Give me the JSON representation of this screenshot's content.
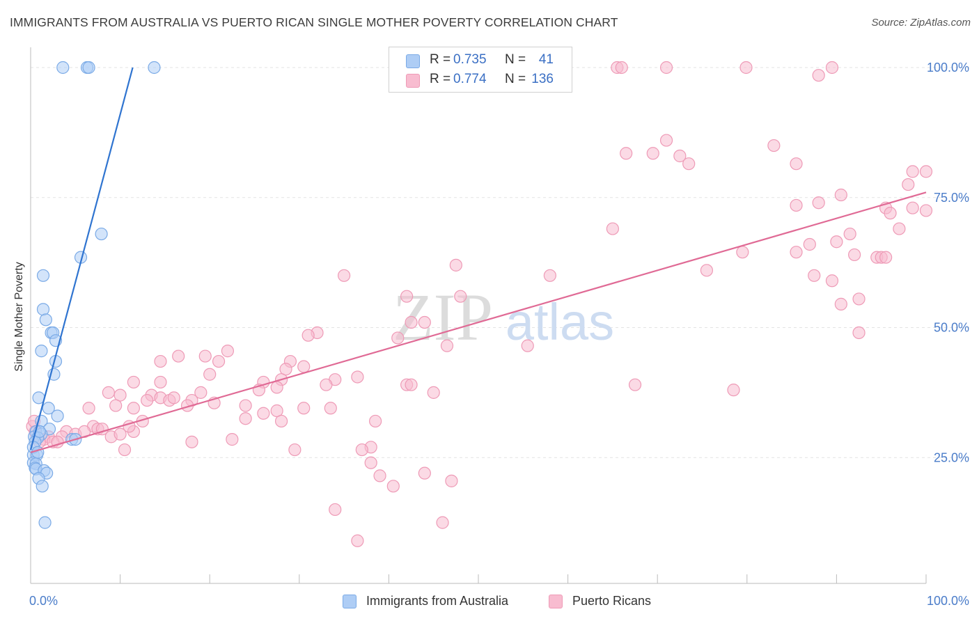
{
  "title": "IMMIGRANTS FROM AUSTRALIA VS PUERTO RICAN SINGLE MOTHER POVERTY CORRELATION CHART",
  "source": "Source: ZipAtlas.com",
  "watermark": {
    "zip": "ZIP",
    "atlas": "atlas"
  },
  "colors": {
    "blue_fill": "#aecdf5",
    "blue_stroke": "#7aaae6",
    "blue_line": "#2f74d0",
    "pink_fill": "#f8bcd0",
    "pink_stroke": "#ee9ab6",
    "pink_line": "#e06a95",
    "axis_text": "#4a7cc9",
    "grid": "#e3e3e3"
  },
  "legend": {
    "rows": [
      {
        "r_label": "R =",
        "r_value": "0.735",
        "n_label": "N =",
        "n_value": "41"
      },
      {
        "r_label": "R =",
        "r_value": "0.774",
        "n_label": "N =",
        "n_value": "136"
      }
    ]
  },
  "bottom_legend": [
    "Immigrants from Australia",
    "Puerto Ricans"
  ],
  "chart_data": {
    "type": "scatter",
    "title": "IMMIGRANTS FROM AUSTRALIA VS PUERTO RICAN SINGLE MOTHER POVERTY CORRELATION CHART",
    "xlabel": "",
    "ylabel": "Single Mother Poverty",
    "xlim": [
      0,
      100
    ],
    "ylim": [
      0,
      102
    ],
    "x_tick_labels": [
      {
        "value": 0,
        "label": "0.0%"
      },
      {
        "value": 100,
        "label": "100.0%"
      }
    ],
    "y_tick_labels": [
      {
        "value": 25,
        "label": "25.0%"
      },
      {
        "value": 50,
        "label": "50.0%"
      },
      {
        "value": 75,
        "label": "75.0%"
      },
      {
        "value": 100,
        "label": "100.0%"
      }
    ],
    "series": [
      {
        "name": "Immigrants from Australia",
        "R": 0.735,
        "N": 41,
        "trend": {
          "x0": 0.0,
          "y0": 26.5,
          "x1": 11.4,
          "y1": 100.0
        },
        "points": [
          [
            3.6,
            100
          ],
          [
            6.3,
            100
          ],
          [
            6.5,
            100
          ],
          [
            13.8,
            100
          ],
          [
            7.9,
            68
          ],
          [
            5.6,
            63.5
          ],
          [
            1.4,
            60
          ],
          [
            1.4,
            53.5
          ],
          [
            1.7,
            51.5
          ],
          [
            2.3,
            49
          ],
          [
            2.5,
            49
          ],
          [
            1.2,
            45.5
          ],
          [
            2.8,
            47.5
          ],
          [
            2.8,
            43.5
          ],
          [
            2.6,
            41
          ],
          [
            0.9,
            36.5
          ],
          [
            2.0,
            34.5
          ],
          [
            3.0,
            33
          ],
          [
            1.2,
            32
          ],
          [
            2.1,
            30.5
          ],
          [
            0.6,
            30
          ],
          [
            1.2,
            29.5
          ],
          [
            0.4,
            29
          ],
          [
            0.8,
            28.8
          ],
          [
            4.6,
            28.5
          ],
          [
            5.0,
            28.5
          ],
          [
            0.5,
            28
          ],
          [
            0.3,
            25.5
          ],
          [
            0.7,
            25.5
          ],
          [
            0.3,
            24
          ],
          [
            0.6,
            23.8
          ],
          [
            0.5,
            23
          ],
          [
            0.6,
            22.8
          ],
          [
            1.5,
            22.5
          ],
          [
            1.8,
            22
          ],
          [
            0.9,
            21
          ],
          [
            1.3,
            19.5
          ],
          [
            1.6,
            12.5
          ],
          [
            0.3,
            27
          ],
          [
            1.0,
            30
          ],
          [
            0.8,
            26
          ]
        ]
      },
      {
        "name": "Puerto Ricans",
        "R": 0.774,
        "N": 136,
        "trend": {
          "x0": 0.0,
          "y0": 26.0,
          "x1": 100.0,
          "y1": 76.0
        },
        "points": [
          [
            65.5,
            100
          ],
          [
            66.0,
            100
          ],
          [
            71.0,
            100
          ],
          [
            79.9,
            100
          ],
          [
            89.5,
            100
          ],
          [
            88.0,
            98.5
          ],
          [
            71.0,
            86
          ],
          [
            83.0,
            85
          ],
          [
            66.5,
            83.5
          ],
          [
            69.5,
            83.5
          ],
          [
            72.5,
            83
          ],
          [
            73.5,
            81.5
          ],
          [
            85.5,
            81.5
          ],
          [
            98.5,
            80
          ],
          [
            100.0,
            80
          ],
          [
            98.0,
            77.5
          ],
          [
            90.5,
            75.5
          ],
          [
            88.0,
            74
          ],
          [
            85.5,
            73.5
          ],
          [
            98.5,
            73
          ],
          [
            95.5,
            73
          ],
          [
            96.0,
            72
          ],
          [
            100.0,
            72.5
          ],
          [
            97.0,
            69
          ],
          [
            65.0,
            69
          ],
          [
            91.5,
            68
          ],
          [
            87.0,
            66
          ],
          [
            90.0,
            66.5
          ],
          [
            79.5,
            64.5
          ],
          [
            85.5,
            64.5
          ],
          [
            92.0,
            64
          ],
          [
            94.5,
            63.5
          ],
          [
            95.0,
            63.5
          ],
          [
            95.5,
            63.5
          ],
          [
            47.5,
            62
          ],
          [
            75.5,
            61
          ],
          [
            35.0,
            60
          ],
          [
            58.0,
            60
          ],
          [
            87.5,
            60
          ],
          [
            89.5,
            59
          ],
          [
            42.0,
            56
          ],
          [
            48.0,
            56
          ],
          [
            92.5,
            55.5
          ],
          [
            90.5,
            54.5
          ],
          [
            42.5,
            51
          ],
          [
            44.0,
            51
          ],
          [
            32.0,
            49
          ],
          [
            31.0,
            48.5
          ],
          [
            41.0,
            48
          ],
          [
            92.5,
            49
          ],
          [
            46.5,
            46.5
          ],
          [
            55.5,
            46.5
          ],
          [
            22.0,
            45.5
          ],
          [
            16.5,
            44.5
          ],
          [
            19.5,
            44.5
          ],
          [
            21.0,
            43.5
          ],
          [
            14.5,
            43.5
          ],
          [
            29.0,
            43.5
          ],
          [
            30.5,
            42.5
          ],
          [
            28.5,
            42
          ],
          [
            34.0,
            40
          ],
          [
            36.5,
            40.5
          ],
          [
            20.0,
            41
          ],
          [
            28.0,
            40
          ],
          [
            11.5,
            39.5
          ],
          [
            14.5,
            39.5
          ],
          [
            26.0,
            39.5
          ],
          [
            33.0,
            39
          ],
          [
            42.0,
            39
          ],
          [
            42.5,
            39
          ],
          [
            67.5,
            39
          ],
          [
            27.5,
            38.5
          ],
          [
            25.5,
            38
          ],
          [
            45.0,
            37.5
          ],
          [
            78.5,
            38
          ],
          [
            19.0,
            37.5
          ],
          [
            8.7,
            37.5
          ],
          [
            10.0,
            37
          ],
          [
            13.5,
            37
          ],
          [
            14.5,
            36.5
          ],
          [
            15.5,
            36
          ],
          [
            16.0,
            36.5
          ],
          [
            18.0,
            36
          ],
          [
            13.0,
            36
          ],
          [
            20.5,
            35.5
          ],
          [
            17.5,
            35
          ],
          [
            24.0,
            35
          ],
          [
            27.5,
            34
          ],
          [
            30.5,
            34.5
          ],
          [
            26.0,
            33.5
          ],
          [
            33.5,
            34.5
          ],
          [
            9.5,
            35
          ],
          [
            11.5,
            34.5
          ],
          [
            6.5,
            34.5
          ],
          [
            24.0,
            32.5
          ],
          [
            28.0,
            32
          ],
          [
            38.5,
            32
          ],
          [
            12.5,
            32
          ],
          [
            7.0,
            31
          ],
          [
            7.5,
            30.5
          ],
          [
            8.0,
            30.5
          ],
          [
            11.5,
            30
          ],
          [
            4.0,
            30
          ],
          [
            5.0,
            29.5
          ],
          [
            6.0,
            30
          ],
          [
            9.0,
            29
          ],
          [
            10.0,
            29.5
          ],
          [
            3.5,
            29
          ],
          [
            2.0,
            29
          ],
          [
            1.5,
            28.5
          ],
          [
            1.0,
            28
          ],
          [
            2.5,
            28
          ],
          [
            3.0,
            28
          ],
          [
            18.0,
            28
          ],
          [
            22.5,
            28.5
          ],
          [
            0.5,
            30
          ],
          [
            38.0,
            27
          ],
          [
            10.5,
            26.5
          ],
          [
            29.5,
            26.5
          ],
          [
            37.0,
            26.5
          ],
          [
            38.0,
            24
          ],
          [
            39.0,
            21.5
          ],
          [
            44.0,
            22
          ],
          [
            47.0,
            20.5
          ],
          [
            40.5,
            19.5
          ],
          [
            34.0,
            15
          ],
          [
            46.0,
            12.5
          ],
          [
            36.5,
            9
          ],
          [
            11.0,
            31
          ],
          [
            0.2,
            31
          ],
          [
            0.4,
            32
          ]
        ]
      }
    ]
  }
}
